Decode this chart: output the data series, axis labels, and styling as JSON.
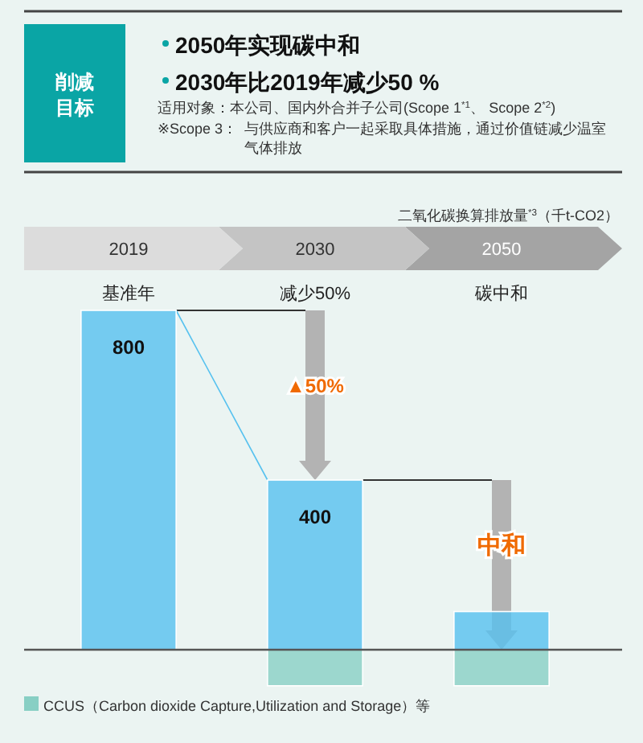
{
  "chart_data": {
    "type": "bar",
    "title": "削减目标",
    "ylabel": "二氧化碳换算排放量$^{*3}$（千t-CO2）",
    "categories": [
      "2019",
      "2030",
      "2050"
    ],
    "series": [
      {
        "color": "#56c1ef",
        "values": [
          800,
          400,
          90
        ],
        "value_labels": [
          "800",
          "400",
          null
        ]
      },
      {
        "name": "CCUS（Carbon dioxide Capture,Utilization and Storage）等",
        "color": "#88cfc4",
        "values": [
          null,
          -85,
          -85
        ]
      }
    ],
    "tick_labels": "x",
    "legend": "bottom left",
    "annotations": [
      "2050年实现碳中和",
      "2030年比2019年减少50 %",
      "适用对象：本公司、国内外合并子公司(Scope 1$^{*1}$、 Scope 2$^{*2}$)",
      "※Scope 3：与供应商和客户一起采取具体措施，通过价值链减少温室气体排放",
      "基准年",
      "减少50%",
      "碳中和",
      "▲50%",
      "中和"
    ]
  }
}
